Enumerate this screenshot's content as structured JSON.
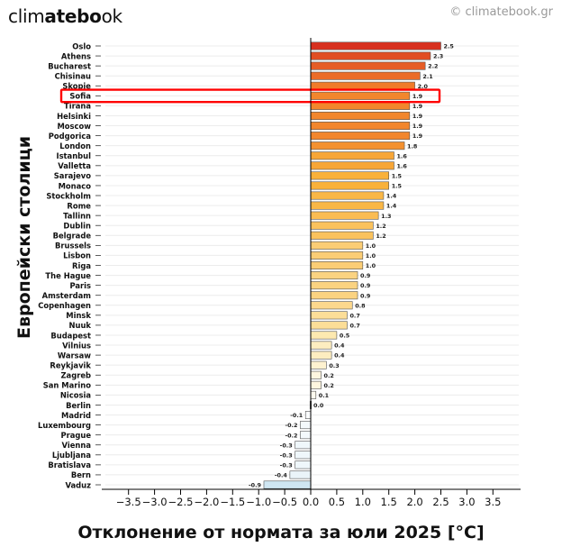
{
  "branding": {
    "logo_regular": "clim",
    "logo_bold": "atebo",
    "logo_tail": "ok",
    "copyright": "© climatebook.gr"
  },
  "chart_data": {
    "type": "bar",
    "orientation": "horizontal",
    "title": "",
    "xlabel": "Отклонение от нормата за юли 2025 [°C]",
    "ylabel": "Европейски столици",
    "xlim": [
      -4,
      4
    ],
    "xticks": [
      -3.5,
      -3.0,
      -2.5,
      -2.0,
      -1.5,
      -1.0,
      -0.5,
      0.0,
      0.5,
      1.0,
      1.5,
      2.0,
      2.5,
      3.0,
      3.5
    ],
    "xtick_labels": [
      "−3.5",
      "−3.0",
      "−2.5",
      "−2.0",
      "−1.5",
      "−1.0",
      "−0.5",
      "0.0",
      "0.5",
      "1.0",
      "1.5",
      "2.0",
      "2.5",
      "3.0",
      "3.5"
    ],
    "grid": "horizontal",
    "highlighted_category": "Sofia",
    "highlight_color": "#ff0000",
    "categories": [
      "Oslo",
      "Athens",
      "Bucharest",
      "Chisinau",
      "Skopje",
      "Sofia",
      "Tirana",
      "Helsinki",
      "Moscow",
      "Podgorica",
      "London",
      "Istanbul",
      "Valletta",
      "Sarajevo",
      "Monaco",
      "Stockholm",
      "Rome",
      "Tallinn",
      "Dublin",
      "Belgrade",
      "Brussels",
      "Lisbon",
      "Riga",
      "The Hague",
      "Paris",
      "Amsterdam",
      "Copenhagen",
      "Minsk",
      "Nuuk",
      "Budapest",
      "Vilnius",
      "Warsaw",
      "Reykjavik",
      "Zagreb",
      "San Marino",
      "Nicosia",
      "Berlin",
      "Madrid",
      "Luxembourg",
      "Prague",
      "Vienna",
      "Ljubljana",
      "Bratislava",
      "Bern",
      "Vaduz"
    ],
    "values": [
      2.5,
      2.3,
      2.2,
      2.1,
      2.0,
      1.9,
      1.9,
      1.9,
      1.9,
      1.9,
      1.8,
      1.6,
      1.6,
      1.5,
      1.5,
      1.4,
      1.4,
      1.3,
      1.2,
      1.2,
      1.0,
      1.0,
      1.0,
      0.9,
      0.9,
      0.9,
      0.8,
      0.7,
      0.7,
      0.5,
      0.4,
      0.4,
      0.3,
      0.2,
      0.2,
      0.1,
      0.0,
      -0.1,
      -0.2,
      -0.2,
      -0.3,
      -0.3,
      -0.3,
      -0.4,
      -0.9
    ],
    "value_labels": [
      "2.5",
      "2.3",
      "2.2",
      "2.1",
      "2.0",
      "1.9",
      "1.9",
      "1.9",
      "1.9",
      "1.9",
      "1.8",
      "1.6",
      "1.6",
      "1.5",
      "1.5",
      "1.4",
      "1.4",
      "1.3",
      "1.2",
      "1.2",
      "1.0",
      "1.0",
      "1.0",
      "0.9",
      "0.9",
      "0.9",
      "0.8",
      "0.7",
      "0.7",
      "0.5",
      "0.4",
      "0.4",
      "0.3",
      "0.2",
      "0.2",
      "0.1",
      "0.0",
      "-0.1",
      "-0.2",
      "-0.2",
      "-0.3",
      "-0.3",
      "-0.3",
      "-0.4",
      "-0.9"
    ],
    "colormap": {
      "cold": "#cfe6f2",
      "neutral": "#ffffff",
      "warm_low": "#fde9b0",
      "warm_mid": "#f9b13a",
      "warm_high": "#f07b2a",
      "hot": "#d7301f"
    }
  }
}
